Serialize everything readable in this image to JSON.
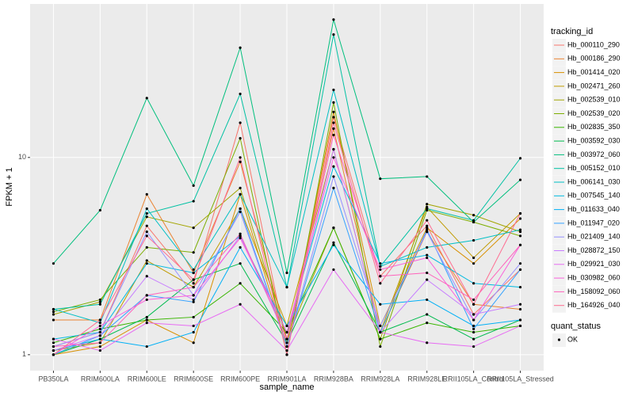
{
  "chart_data": {
    "type": "line",
    "x_label": "sample_name",
    "y_label": "FPKM + 1",
    "log_scale": true,
    "grid": true,
    "ylim": [
      0.83,
      60
    ],
    "yticks": [
      1,
      10
    ],
    "point_color": "#000000",
    "legend_title": "tracking_id",
    "point_legend": {
      "title": "quant_status",
      "label": "OK"
    },
    "categories": [
      "PB350LA",
      "RRIM600LA",
      "RRIM600LE",
      "RRIM600SE",
      "RRIM600PE",
      "RRIM901LA",
      "RRIM928BA",
      "RRIM928LA",
      "RRIM928LE",
      "RRII105LA_Control",
      "RRII105LA_Stressed"
    ],
    "series": [
      {
        "name": "Hb_000110_290",
        "color": "#F8766D",
        "values": [
          1.1,
          1.3,
          4.5,
          2.3,
          15,
          1.1,
          16,
          2.5,
          4.5,
          1.6,
          2.7
        ]
      },
      {
        "name": "Hb_000186_290",
        "color": "#EA8331",
        "values": [
          1.5,
          1.5,
          6.5,
          2.6,
          9.5,
          1.2,
          14,
          1.3,
          4.2,
          1.8,
          1.7
        ]
      },
      {
        "name": "Hb_001414_020",
        "color": "#D89000",
        "values": [
          1.0,
          1.1,
          1.5,
          1.15,
          6.5,
          1.1,
          17,
          1.4,
          4.4,
          2.9,
          4.9
        ]
      },
      {
        "name": "Hb_002471_260",
        "color": "#C09B00",
        "values": [
          1.05,
          1.15,
          3.0,
          2.2,
          5.5,
          1.4,
          11,
          1.3,
          5.6,
          3.1,
          5.2
        ]
      },
      {
        "name": "Hb_002539_010",
        "color": "#A3A500",
        "values": [
          1.6,
          1.85,
          5,
          4.4,
          7,
          1.2,
          4.4,
          1.2,
          5.8,
          5.1,
          4.2
        ]
      },
      {
        "name": "Hb_002539_020",
        "color": "#7CAE00",
        "values": [
          1.65,
          1.9,
          3.5,
          3.3,
          12.5,
          1.0,
          19,
          1.1,
          5.4,
          4.7,
          4.0
        ]
      },
      {
        "name": "Hb_002835_350",
        "color": "#39B600",
        "values": [
          1.15,
          1.35,
          1.5,
          1.55,
          2.3,
          1.3,
          4.4,
          1.2,
          1.45,
          1.3,
          1.4
        ]
      },
      {
        "name": "Hb_003592_030",
        "color": "#00BB4E",
        "values": [
          1.0,
          1.2,
          1.55,
          2.4,
          2.9,
          1.15,
          3.7,
          1.3,
          1.6,
          1.2,
          1.5
        ]
      },
      {
        "name": "Hb_003972_060",
        "color": "#00BF7D",
        "values": [
          2.9,
          5.4,
          20,
          7.2,
          36,
          2.6,
          50,
          7.8,
          8,
          4.7,
          7.7
        ]
      },
      {
        "name": "Hb_005152_010",
        "color": "#00C1A3",
        "values": [
          1.7,
          1.8,
          5.2,
          6,
          21,
          2.2,
          42,
          2.8,
          5.5,
          4.8,
          9.9
        ]
      },
      {
        "name": "Hb_006141_030",
        "color": "#00BFC4",
        "values": [
          1.7,
          1.45,
          5.5,
          2.7,
          6.5,
          2.2,
          22,
          2.8,
          3.5,
          3.8,
          4.3
        ]
      },
      {
        "name": "Hb_007545_140",
        "color": "#00BAE0",
        "values": [
          1.2,
          1.3,
          2.9,
          2.6,
          4.0,
          1.3,
          9,
          2.9,
          3.2,
          2.3,
          2.2
        ]
      },
      {
        "name": "Hb_011633_040",
        "color": "#00B0F6",
        "values": [
          1.05,
          1.2,
          1.1,
          1.3,
          3.5,
          1.4,
          3.6,
          1.8,
          1.9,
          1.4,
          1.5
        ]
      },
      {
        "name": "Hb_011947_020",
        "color": "#35A2FF",
        "values": [
          1.0,
          1.25,
          2.0,
          1.85,
          5.5,
          1.1,
          7,
          1.3,
          4.3,
          1.35,
          2.7
        ]
      },
      {
        "name": "Hb_021409_140",
        "color": "#9590FF",
        "values": [
          1.1,
          1.3,
          4.2,
          2.0,
          5.3,
          1.1,
          8,
          1.4,
          4.2,
          1.5,
          2.9
        ]
      },
      {
        "name": "Hb_028872_150",
        "color": "#C77CFF",
        "values": [
          1.05,
          1.25,
          2.5,
          1.9,
          4.0,
          1.2,
          11,
          1.3,
          2.4,
          1.6,
          1.8
        ]
      },
      {
        "name": "Hb_029921_030",
        "color": "#E76BF3",
        "values": [
          1.2,
          1.05,
          1.45,
          1.4,
          1.8,
          1.05,
          2.7,
          1.3,
          1.15,
          1.1,
          1.4
        ]
      },
      {
        "name": "Hb_030982_060",
        "color": "#FA62DB",
        "values": [
          1.0,
          1.4,
          1.9,
          2.0,
          3.9,
          1.3,
          10,
          2.7,
          3.1,
          1.5,
          3.6
        ]
      },
      {
        "name": "Hb_158092_060",
        "color": "#FF62BC",
        "values": [
          1.1,
          1.15,
          2.0,
          2.2,
          4.1,
          1.2,
          13,
          2.5,
          2.6,
          1.9,
          3.6
        ]
      },
      {
        "name": "Hb_164926_040",
        "color": "#FF6C91",
        "values": [
          1.0,
          1.5,
          4.0,
          2.4,
          10,
          1.0,
          15,
          2.3,
          4.8,
          1.8,
          5.2
        ]
      }
    ]
  }
}
